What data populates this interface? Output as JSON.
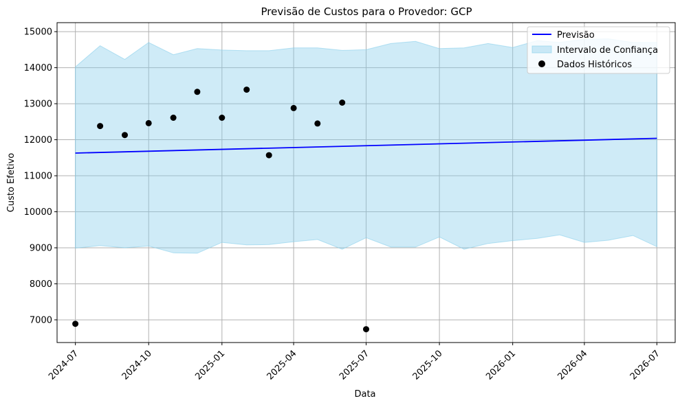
{
  "chart_data": {
    "type": "line",
    "title": "Previsão de Custos para o Provedor: GCP",
    "xlabel": "Data",
    "ylabel": "Custo Efetivo",
    "xlim": [
      "2024-06-08",
      "2026-07-24"
    ],
    "ylim": [
      6370,
      15250
    ],
    "x_ticks": [
      "2024-07",
      "2024-10",
      "2025-01",
      "2025-04",
      "2025-07",
      "2025-10",
      "2026-01",
      "2026-04",
      "2026-07"
    ],
    "y_ticks": [
      7000,
      8000,
      9000,
      10000,
      11000,
      12000,
      13000,
      14000,
      15000
    ],
    "grid": true,
    "legend_position": "top-right",
    "colors": {
      "forecast": "#0000ff",
      "interval": "#87ceeb",
      "history": "#000000",
      "grid": "#b0b0b0"
    },
    "series": [
      {
        "name": "Previsão",
        "kind": "line",
        "x": [
          "2024-07-01",
          "2026-07-01"
        ],
        "y": [
          11630,
          12040
        ]
      },
      {
        "name": "Intervalo de Confiança",
        "kind": "band",
        "x": [
          "2024-07-01",
          "2024-08-01",
          "2024-09-01",
          "2024-10-01",
          "2024-11-01",
          "2024-12-01",
          "2025-01-01",
          "2025-02-01",
          "2025-03-01",
          "2025-04-01",
          "2025-05-01",
          "2025-06-01",
          "2025-07-01",
          "2025-08-01",
          "2025-09-01",
          "2025-10-01",
          "2025-11-01",
          "2025-12-01",
          "2026-01-01",
          "2026-02-01",
          "2026-03-01",
          "2026-04-01",
          "2026-05-01",
          "2026-06-01",
          "2026-07-01"
        ],
        "upper": [
          14020,
          14610,
          14230,
          14700,
          14360,
          14530,
          14490,
          14470,
          14470,
          14550,
          14550,
          14480,
          14500,
          14670,
          14730,
          14530,
          14550,
          14670,
          14560,
          14750,
          14700,
          14790,
          14800,
          14700,
          14700
        ],
        "lower": [
          8990,
          9060,
          9000,
          9050,
          8860,
          8850,
          9150,
          9080,
          9090,
          9170,
          9230,
          8960,
          9280,
          9020,
          9020,
          9300,
          8960,
          9120,
          9200,
          9260,
          9360,
          9150,
          9210,
          9340,
          9030
        ]
      },
      {
        "name": "Dados Históricos",
        "kind": "scatter",
        "x": [
          "2024-07-01",
          "2024-08-01",
          "2024-09-01",
          "2024-10-01",
          "2024-11-01",
          "2024-12-01",
          "2025-01-01",
          "2025-02-01",
          "2025-03-01",
          "2025-04-01",
          "2025-05-01",
          "2025-06-01",
          "2025-07-01"
        ],
        "y": [
          6890,
          12380,
          12130,
          12460,
          12610,
          13330,
          12610,
          13390,
          11570,
          12880,
          12450,
          13030,
          6740
        ]
      }
    ],
    "legend": [
      "Previsão",
      "Intervalo de Confiança",
      "Dados Históricos"
    ]
  }
}
